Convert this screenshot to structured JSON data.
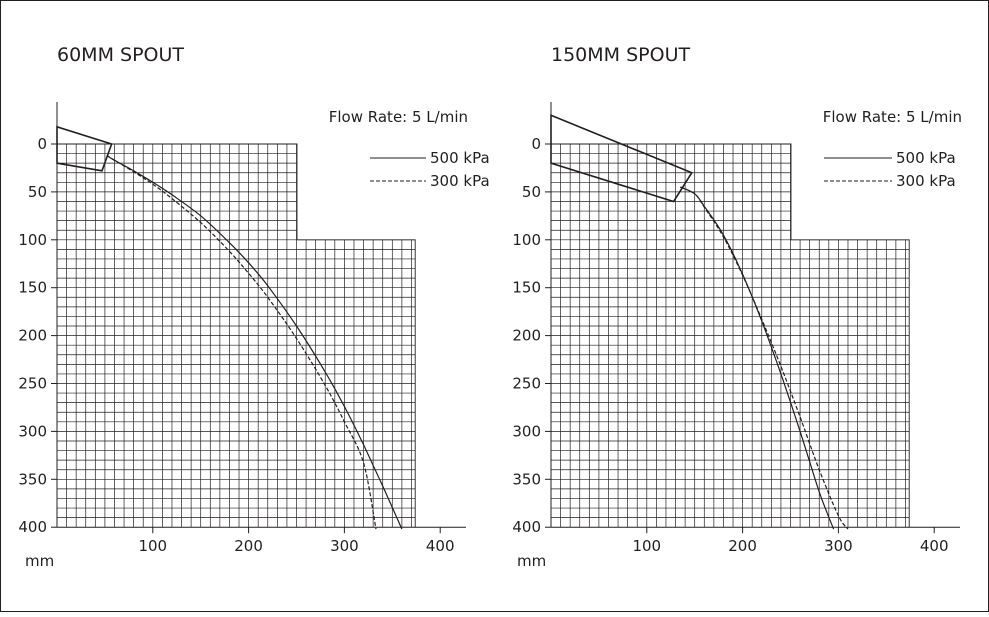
{
  "chart_data": [
    {
      "type": "line",
      "title": "60MM SPOUT",
      "annotation": "Flow Rate: 5 L/min",
      "unit_label": "mm",
      "x_ticks": [
        100,
        200,
        300,
        400
      ],
      "y_ticks": [
        0,
        50,
        100,
        150,
        200,
        250,
        300,
        350,
        400
      ],
      "xlim": [
        0,
        400
      ],
      "ylim": [
        400,
        0
      ],
      "y_inverted": true,
      "grid": true,
      "legend_position": "top-right",
      "spout_outline": [
        [
          0,
          -18
        ],
        [
          57,
          0
        ],
        [
          47,
          28
        ],
        [
          0,
          20
        ]
      ],
      "series": [
        {
          "name": "500 kPa",
          "style": "solid",
          "x": [
            52,
            60,
            80,
            100,
            120,
            150,
            180,
            200,
            220,
            250,
            280,
            300,
            320,
            340,
            360
          ],
          "y": [
            12,
            17,
            28,
            40,
            53,
            75,
            103,
            124,
            148,
            190,
            238,
            274,
            314,
            357,
            402
          ]
        },
        {
          "name": "300 kPa",
          "style": "dashed",
          "x": [
            52,
            60,
            80,
            100,
            120,
            150,
            180,
            200,
            220,
            250,
            280,
            300,
            320,
            333
          ],
          "y": [
            12,
            17,
            29,
            42,
            57,
            82,
            112,
            135,
            160,
            203,
            252,
            290,
            333,
            402
          ]
        }
      ]
    },
    {
      "type": "line",
      "title": "150MM SPOUT",
      "annotation": "Flow Rate: 5 L/min",
      "unit_label": "mm",
      "x_ticks": [
        100,
        200,
        300,
        400
      ],
      "y_ticks": [
        0,
        50,
        100,
        150,
        200,
        250,
        300,
        350,
        400
      ],
      "xlim": [
        0,
        400
      ],
      "ylim": [
        400,
        0
      ],
      "y_inverted": true,
      "grid": true,
      "legend_position": "top-right",
      "spout_outline": [
        [
          0,
          -30
        ],
        [
          147,
          30
        ],
        [
          128,
          60
        ],
        [
          0,
          20
        ]
      ],
      "series": [
        {
          "name": "500 kPa",
          "style": "solid",
          "x": [
            135,
            150,
            160,
            180,
            200,
            220,
            240,
            260,
            280,
            295
          ],
          "y": [
            45,
            52,
            65,
            95,
            136,
            185,
            240,
            300,
            363,
            402
          ]
        },
        {
          "name": "300 kPa",
          "style": "dashed",
          "x": [
            135,
            150,
            160,
            180,
            200,
            220,
            240,
            260,
            280,
            300,
            310
          ],
          "y": [
            45,
            52,
            66,
            97,
            137,
            183,
            232,
            285,
            340,
            388,
            402
          ]
        }
      ]
    }
  ]
}
